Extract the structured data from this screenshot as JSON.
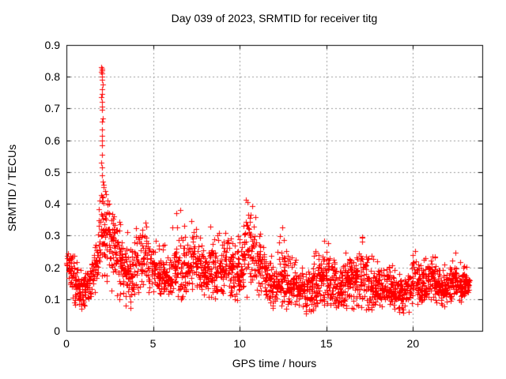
{
  "chart_data": {
    "type": "scatter",
    "title": "Day 039 of 2023, SRMTID for receiver titg",
    "xlabel": "GPS time / hours",
    "ylabel": "SRMTID / TECUs",
    "xlim": [
      0,
      24
    ],
    "ylim": [
      0,
      0.9
    ],
    "xtick_values": [
      0,
      5,
      10,
      15,
      20
    ],
    "xtick_labels": [
      "0",
      "5",
      "10",
      "15",
      "20"
    ],
    "ytick_values": [
      0,
      0.1,
      0.2,
      0.3,
      0.4,
      0.5,
      0.6,
      0.7,
      0.8,
      0.9
    ],
    "ytick_labels": [
      "0",
      "0.1",
      "0.2",
      "0.3",
      "0.4",
      "0.5",
      "0.6",
      "0.7",
      "0.8",
      "0.9"
    ],
    "grid": true,
    "grid_style": "dashed",
    "grid_color": "#999999",
    "marker": "plus",
    "marker_size_px": 7,
    "marker_color": "#ff0000",
    "series_name": "SRMTID",
    "data_start_hour": 0.0,
    "data_end_hour": 23.25,
    "peak": {
      "hour": 2.05,
      "value": 0.83
    },
    "envelope": [
      [
        0.0,
        0.16,
        0.25,
        0.215
      ],
      [
        0.3,
        0.1,
        0.25,
        0.2
      ],
      [
        0.6,
        0.07,
        0.23,
        0.14
      ],
      [
        1.0,
        0.06,
        0.19,
        0.115
      ],
      [
        1.4,
        0.09,
        0.24,
        0.15
      ],
      [
        1.7,
        0.12,
        0.32,
        0.21
      ],
      [
        1.95,
        0.16,
        0.45,
        0.28
      ],
      [
        2.1,
        0.18,
        0.48,
        0.32
      ],
      [
        2.3,
        0.15,
        0.46,
        0.3
      ],
      [
        2.55,
        0.12,
        0.4,
        0.28
      ],
      [
        2.8,
        0.11,
        0.37,
        0.26
      ],
      [
        3.1,
        0.09,
        0.34,
        0.23
      ],
      [
        3.4,
        0.08,
        0.32,
        0.2
      ],
      [
        3.7,
        0.07,
        0.3,
        0.17
      ],
      [
        4.0,
        0.1,
        0.33,
        0.21
      ],
      [
        4.35,
        0.12,
        0.36,
        0.24
      ],
      [
        4.7,
        0.11,
        0.33,
        0.21
      ],
      [
        5.0,
        0.1,
        0.3,
        0.19
      ],
      [
        5.4,
        0.1,
        0.27,
        0.17
      ],
      [
        5.8,
        0.1,
        0.28,
        0.17
      ],
      [
        6.2,
        0.1,
        0.34,
        0.19
      ],
      [
        6.5,
        0.1,
        0.4,
        0.21
      ],
      [
        6.8,
        0.1,
        0.35,
        0.19
      ],
      [
        7.1,
        0.11,
        0.34,
        0.21
      ],
      [
        7.4,
        0.11,
        0.36,
        0.22
      ],
      [
        7.7,
        0.12,
        0.31,
        0.2
      ],
      [
        8.0,
        0.1,
        0.3,
        0.18
      ],
      [
        8.35,
        0.1,
        0.35,
        0.19
      ],
      [
        8.7,
        0.09,
        0.31,
        0.17
      ],
      [
        9.0,
        0.1,
        0.35,
        0.2
      ],
      [
        9.3,
        0.12,
        0.33,
        0.22
      ],
      [
        9.65,
        0.08,
        0.3,
        0.18
      ],
      [
        10.0,
        0.04,
        0.31,
        0.16
      ],
      [
        10.25,
        0.08,
        0.4,
        0.24
      ],
      [
        10.5,
        0.1,
        0.44,
        0.28
      ],
      [
        10.75,
        0.12,
        0.4,
        0.26
      ],
      [
        11.0,
        0.11,
        0.35,
        0.23
      ],
      [
        11.3,
        0.1,
        0.3,
        0.2
      ],
      [
        11.6,
        0.09,
        0.26,
        0.16
      ],
      [
        11.9,
        0.06,
        0.23,
        0.13
      ],
      [
        12.2,
        0.08,
        0.3,
        0.15
      ],
      [
        12.5,
        0.07,
        0.33,
        0.16
      ],
      [
        12.8,
        0.07,
        0.28,
        0.15
      ],
      [
        13.1,
        0.07,
        0.24,
        0.145
      ],
      [
        13.5,
        0.06,
        0.21,
        0.135
      ],
      [
        13.9,
        0.05,
        0.21,
        0.13
      ],
      [
        14.3,
        0.06,
        0.25,
        0.14
      ],
      [
        14.7,
        0.08,
        0.3,
        0.17
      ],
      [
        15.0,
        0.07,
        0.32,
        0.17
      ],
      [
        15.3,
        0.07,
        0.26,
        0.155
      ],
      [
        15.7,
        0.06,
        0.22,
        0.14
      ],
      [
        16.1,
        0.06,
        0.25,
        0.15
      ],
      [
        16.5,
        0.04,
        0.27,
        0.15
      ],
      [
        16.85,
        0.08,
        0.33,
        0.17
      ],
      [
        17.15,
        0.06,
        0.3,
        0.16
      ],
      [
        17.45,
        0.03,
        0.25,
        0.135
      ],
      [
        17.8,
        0.07,
        0.24,
        0.14
      ],
      [
        18.2,
        0.07,
        0.22,
        0.135
      ],
      [
        18.6,
        0.08,
        0.22,
        0.14
      ],
      [
        19.0,
        0.06,
        0.2,
        0.12
      ],
      [
        19.4,
        0.03,
        0.18,
        0.11
      ],
      [
        19.8,
        0.06,
        0.23,
        0.13
      ],
      [
        20.1,
        0.08,
        0.26,
        0.16
      ],
      [
        20.4,
        0.08,
        0.22,
        0.14
      ],
      [
        20.8,
        0.08,
        0.25,
        0.15
      ],
      [
        21.1,
        0.1,
        0.26,
        0.17
      ],
      [
        21.45,
        0.08,
        0.22,
        0.14
      ],
      [
        21.8,
        0.07,
        0.21,
        0.13
      ],
      [
        22.1,
        0.08,
        0.24,
        0.15
      ],
      [
        22.45,
        0.1,
        0.25,
        0.16
      ],
      [
        22.75,
        0.08,
        0.22,
        0.14
      ],
      [
        23.0,
        0.1,
        0.21,
        0.15
      ],
      [
        23.25,
        0.11,
        0.19,
        0.15
      ]
    ],
    "spike_points": [
      [
        2.02,
        0.83
      ],
      [
        2.05,
        0.825
      ],
      [
        2.07,
        0.82
      ],
      [
        2.03,
        0.815
      ],
      [
        2.06,
        0.81
      ],
      [
        2.04,
        0.8
      ],
      [
        2.05,
        0.79
      ],
      [
        2.08,
        0.775
      ],
      [
        2.04,
        0.76
      ],
      [
        2.06,
        0.745
      ],
      [
        2.03,
        0.735
      ],
      [
        2.07,
        0.72
      ],
      [
        2.05,
        0.705
      ],
      [
        2.04,
        0.695
      ],
      [
        2.08,
        0.67
      ],
      [
        2.05,
        0.66
      ],
      [
        2.06,
        0.635
      ],
      [
        2.04,
        0.615
      ],
      [
        2.07,
        0.6
      ],
      [
        2.05,
        0.585
      ],
      [
        2.06,
        0.555
      ],
      [
        2.03,
        0.53
      ],
      [
        2.07,
        0.515
      ],
      [
        2.05,
        0.49
      ],
      [
        2.1,
        0.47
      ],
      [
        2.15,
        0.46
      ],
      [
        2.22,
        0.44
      ],
      [
        2.3,
        0.43
      ],
      [
        2.12,
        0.42
      ],
      [
        2.35,
        0.41
      ]
    ],
    "render_hints": {
      "seed": 39,
      "column_step_hours": 0.04,
      "points_per_column_min": 2,
      "points_per_column_max": 6
    }
  }
}
